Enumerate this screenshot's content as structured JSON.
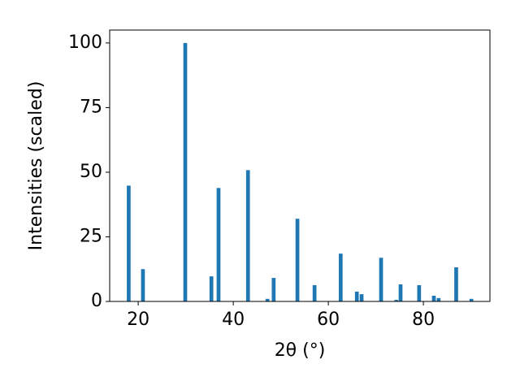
{
  "chart_data": {
    "type": "bar",
    "xlabel": "2θ (°)",
    "ylabel": "Intensities (scaled)",
    "x": [
      18.0,
      21.0,
      29.9,
      35.4,
      36.9,
      43.1,
      47.2,
      48.5,
      53.5,
      57.1,
      62.6,
      66.0,
      67.0,
      71.1,
      74.3,
      75.2,
      79.1,
      82.2,
      83.2,
      86.9,
      90.1
    ],
    "values": [
      44.8,
      12.5,
      100,
      9.7,
      43.9,
      50.8,
      1.0,
      9.1,
      32.0,
      6.3,
      18.5,
      3.8,
      2.8,
      16.9,
      0.6,
      6.6,
      6.3,
      2.2,
      1.3,
      13.2,
      1.0
    ],
    "color": "#1f77b4",
    "xlim": [
      14,
      94
    ],
    "xticks": [
      20,
      40,
      60,
      80
    ],
    "ylim": [
      0,
      105
    ],
    "yticks": [
      0,
      25,
      50,
      75,
      100
    ],
    "grid": false
  }
}
